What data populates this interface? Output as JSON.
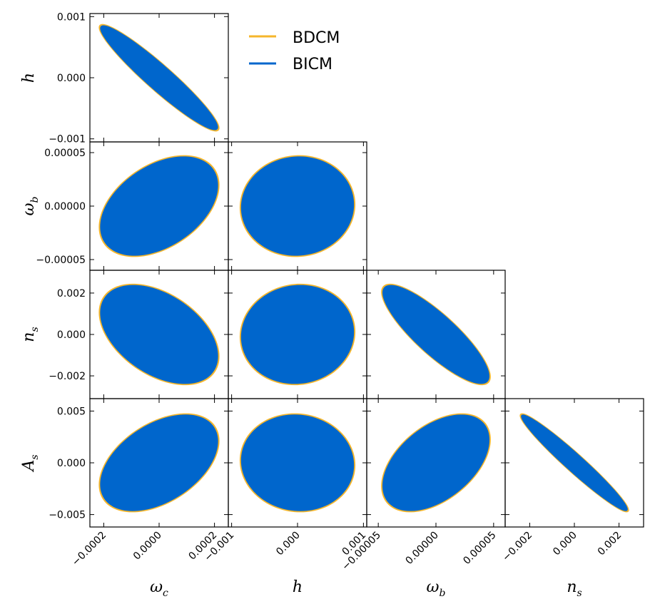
{
  "chart_data": {
    "type": "scatter",
    "subtype": "triangle-corner Fisher ellipse plot",
    "parameters": [
      {
        "name": "ω_c",
        "base": "ω",
        "sub": "c",
        "range": [
          -0.00025,
          0.00025
        ],
        "ticks": [
          -0.0002,
          0.0,
          0.0002
        ],
        "tick_labels": [
          "−0.0002",
          "0.0000",
          "0.0002"
        ]
      },
      {
        "name": "h",
        "base": "h",
        "sub": "",
        "range": [
          -0.00105,
          0.00105
        ],
        "ticks": [
          -0.001,
          0.0,
          0.001
        ],
        "tick_labels": [
          "−0.001",
          "0.000",
          "0.001"
        ]
      },
      {
        "name": "ω_b",
        "base": "ω",
        "sub": "b",
        "range": [
          -6e-05,
          6e-05
        ],
        "ticks": [
          -5e-05,
          0.0,
          5e-05
        ],
        "tick_labels": [
          "−0.00005",
          "0.00000",
          "0.00005"
        ]
      },
      {
        "name": "n_s",
        "base": "n",
        "sub": "s",
        "range": [
          -0.0031,
          0.0031
        ],
        "ticks": [
          -0.002,
          0.0,
          0.002
        ],
        "tick_labels": [
          "−0.002",
          "0.000",
          "0.002"
        ]
      },
      {
        "name": "A_s",
        "base": "A",
        "sub": "s",
        "range": [
          -0.0062,
          0.0062
        ],
        "ticks": [
          -0.005,
          0.0,
          0.005
        ],
        "tick_labels": [
          "−0.005",
          "0.000",
          "0.005"
        ]
      }
    ],
    "series": [
      {
        "name": "BDCM",
        "color": "#f5b62b",
        "scale": 1.0
      },
      {
        "name": "BICM",
        "color": "#0066cc",
        "scale": 0.985
      }
    ],
    "ellipses": [
      {
        "row": 0,
        "col": 0,
        "sx": 0.000215,
        "sy": 0.000865,
        "rho": -0.95
      },
      {
        "row": 1,
        "col": 0,
        "sx": 0.000215,
        "sy": 4.68e-05,
        "rho": 0.42
      },
      {
        "row": 1,
        "col": 1,
        "sx": 0.000865,
        "sy": 4.68e-05,
        "rho": 0.03
      },
      {
        "row": 2,
        "col": 0,
        "sx": 0.000215,
        "sy": 0.00241,
        "rho": -0.44
      },
      {
        "row": 2,
        "col": 1,
        "sx": 0.000865,
        "sy": 0.00241,
        "rho": 0.05
      },
      {
        "row": 2,
        "col": 2,
        "sx": 4.68e-05,
        "sy": 0.00241,
        "rho": -0.85
      },
      {
        "row": 3,
        "col": 0,
        "sx": 0.000215,
        "sy": 0.0047,
        "rho": 0.45
      },
      {
        "row": 3,
        "col": 1,
        "sx": 0.000865,
        "sy": 0.0047,
        "rho": -0.05
      },
      {
        "row": 3,
        "col": 2,
        "sx": 4.68e-05,
        "sy": 0.0047,
        "rho": 0.48
      },
      {
        "row": 3,
        "col": 3,
        "sx": 0.00241,
        "sy": 0.0047,
        "rho": -0.97
      }
    ],
    "legend": {
      "placement": "top-right",
      "entries": [
        "BDCM",
        "BICM"
      ]
    },
    "grid": false
  }
}
